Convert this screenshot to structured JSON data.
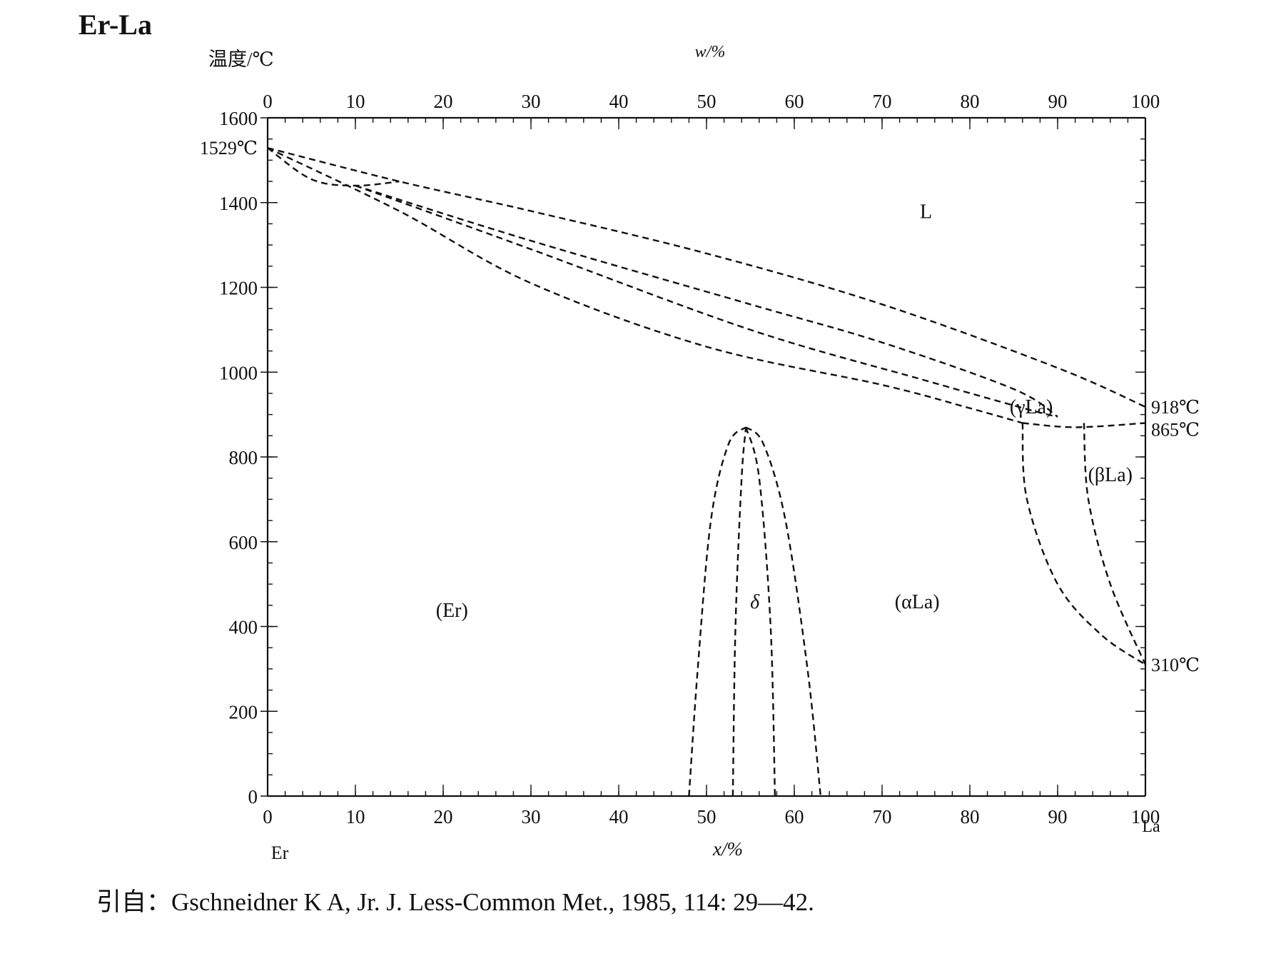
{
  "title": "Er-La",
  "reference": "引自：Gschneidner K A, Jr. J. Less-Common Met., 1985, 114: 29—42.",
  "chart_data": {
    "type": "line",
    "title": "Er-La",
    "ylabel": "温度/℃",
    "top_xlabel": "w/%",
    "xlabel": "x/%",
    "left_element": "Er",
    "right_element": "La",
    "xlim": [
      0,
      100
    ],
    "ylim": [
      0,
      1600
    ],
    "x_ticks": [
      0,
      10,
      20,
      30,
      40,
      50,
      60,
      70,
      80,
      90,
      100
    ],
    "y_ticks": [
      0,
      200,
      400,
      600,
      800,
      1000,
      1200,
      1400,
      1600
    ],
    "top_ticks": [
      0,
      10,
      20,
      30,
      40,
      50,
      60,
      70,
      80,
      90,
      100
    ],
    "point_labels": [
      {
        "text": "1529℃",
        "x": 0,
        "y": 1529,
        "side": "left"
      },
      {
        "text": "918℃",
        "x": 100,
        "y": 918,
        "side": "right"
      },
      {
        "text": "865℃",
        "x": 100,
        "y": 865,
        "side": "right"
      },
      {
        "text": "310℃",
        "x": 100,
        "y": 310,
        "side": "right"
      }
    ],
    "region_labels": [
      {
        "text": "L",
        "x": 75,
        "y": 1380
      },
      {
        "text": "(γLa)",
        "x": 87,
        "y": 920
      },
      {
        "text": "(βLa)",
        "x": 96,
        "y": 760
      },
      {
        "text": "(αLa)",
        "x": 74,
        "y": 460
      },
      {
        "text": "δ",
        "x": 55.5,
        "y": 460
      },
      {
        "text": "(Er)",
        "x": 21,
        "y": 440
      }
    ],
    "series": [
      {
        "values": [
          [
            0,
            1529
          ],
          [
            15,
            1450
          ],
          [
            30,
            1380
          ],
          [
            50,
            1280
          ],
          [
            70,
            1160
          ],
          [
            90,
            1010
          ],
          [
            100,
            918
          ]
        ]
      },
      {
        "values": [
          [
            10,
            1440
          ],
          [
            30,
            1310
          ],
          [
            55,
            1160
          ],
          [
            70,
            1070
          ],
          [
            85,
            960
          ],
          [
            90,
            895
          ]
        ]
      },
      {
        "values": [
          [
            10,
            1440
          ],
          [
            30,
            1290
          ],
          [
            55,
            1100
          ],
          [
            75,
            980
          ],
          [
            87,
            910
          ],
          [
            90,
            895
          ]
        ]
      },
      {
        "values": [
          [
            0,
            1529
          ],
          [
            5,
            1455
          ],
          [
            10,
            1440
          ],
          [
            15,
            1450
          ]
        ]
      },
      {
        "values": [
          [
            0,
            1529
          ],
          [
            15,
            1380
          ],
          [
            30,
            1210
          ],
          [
            50,
            1060
          ],
          [
            70,
            970
          ],
          [
            80,
            915
          ],
          [
            86,
            880
          ]
        ]
      },
      {
        "values": [
          [
            86,
            880
          ],
          [
            92,
            870
          ],
          [
            100,
            880
          ]
        ]
      },
      {
        "values": [
          [
            86,
            880
          ],
          [
            86.5,
            700
          ],
          [
            90,
            500
          ],
          [
            95,
            380
          ],
          [
            100,
            310
          ]
        ]
      },
      {
        "values": [
          [
            93,
            880
          ],
          [
            93.5,
            700
          ],
          [
            96,
            500
          ],
          [
            100,
            310
          ]
        ]
      },
      {
        "values": [
          [
            48,
            0
          ],
          [
            49,
            300
          ],
          [
            50.5,
            650
          ],
          [
            52.5,
            830
          ],
          [
            54.5,
            870
          ]
        ]
      },
      {
        "values": [
          [
            54.5,
            870
          ],
          [
            56.5,
            830
          ],
          [
            59,
            650
          ],
          [
            61.5,
            300
          ],
          [
            63,
            0
          ]
        ]
      },
      {
        "values": [
          [
            53,
            0
          ],
          [
            53.3,
            400
          ],
          [
            54,
            750
          ],
          [
            54.5,
            870
          ]
        ]
      },
      {
        "values": [
          [
            54.5,
            870
          ],
          [
            56,
            750
          ],
          [
            57.3,
            400
          ],
          [
            57.8,
            0
          ]
        ]
      }
    ]
  }
}
